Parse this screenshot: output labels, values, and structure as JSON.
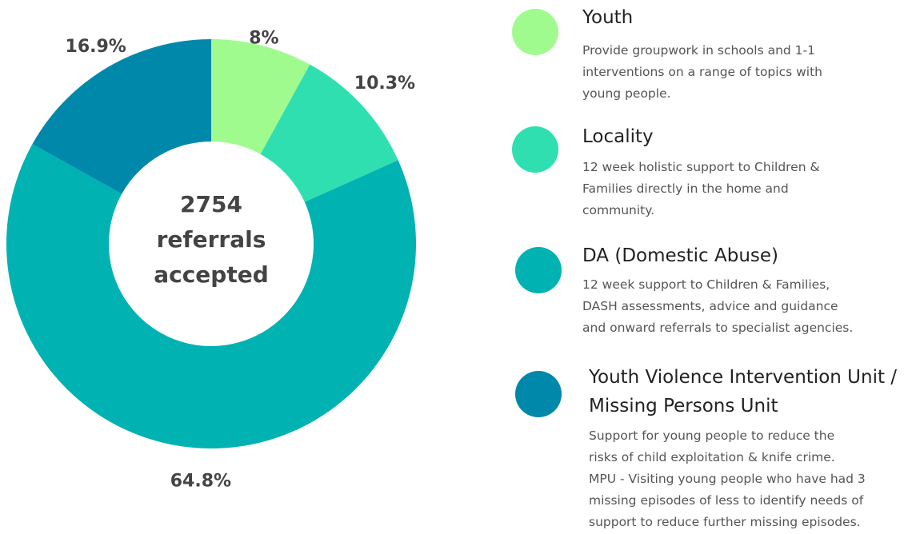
{
  "chart_data": {
    "type": "donut",
    "categories": [
      "Youth",
      "Locality",
      "DA (Domestic Abuse)",
      "Youth Violence Intervention Unit  / Missing Persons Unit"
    ],
    "values": [
      8,
      10.3,
      64.8,
      16.9
    ],
    "value_labels": [
      "8%",
      "10.3%",
      "64.8%",
      "16.9%"
    ],
    "colors": [
      "#a0fb8e",
      "#2fdfb0",
      "#00b2b2",
      "#0088aa"
    ],
    "center_text": [
      "2754",
      "referrals",
      "accepted"
    ],
    "descriptions": [
      [
        "Provide groupwork in schools and 1-1",
        "interventions on a range of topics with",
        "young people."
      ],
      [
        "12 week holistic support to Children &",
        "Families directly in the home and",
        "community."
      ],
      [
        "12 week  support to Children & Families,",
        "DASH assessments, advice and guidance",
        "and onward referrals to specialist agencies."
      ],
      [
        "Support for young people to reduce the",
        "risks of child exploitation & knife crime.",
        "MPU - Visiting young people who have had 3",
        "missing episodes of less to identify needs of",
        "support to reduce further missing episodes."
      ]
    ]
  }
}
